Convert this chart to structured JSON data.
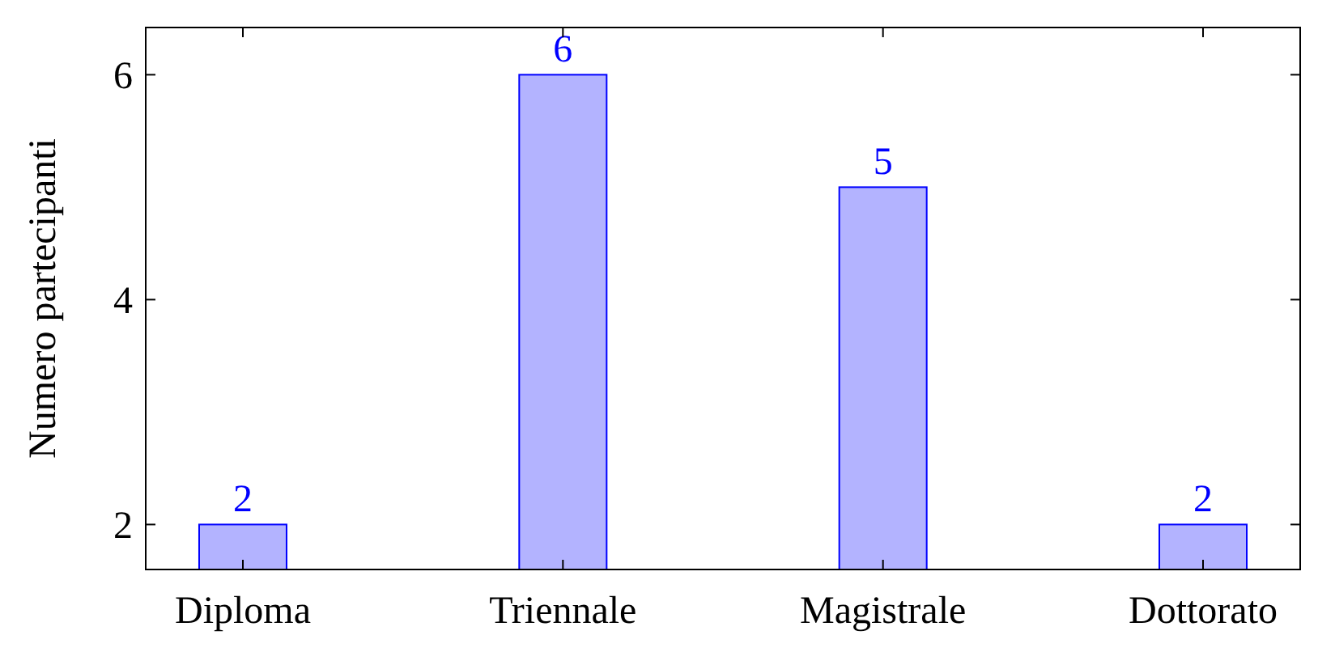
{
  "chart_data": {
    "type": "bar",
    "ylabel": "Numero partecipanti",
    "categories": [
      "Diploma",
      "Triennale",
      "Magistrale",
      "Dottorato"
    ],
    "values": [
      2,
      6,
      5,
      2
    ],
    "color": "#b3b3ff",
    "ylim": [
      1.6,
      6.42
    ],
    "yticks": [
      2,
      4,
      6
    ],
    "grid": false,
    "data_labels": true
  }
}
